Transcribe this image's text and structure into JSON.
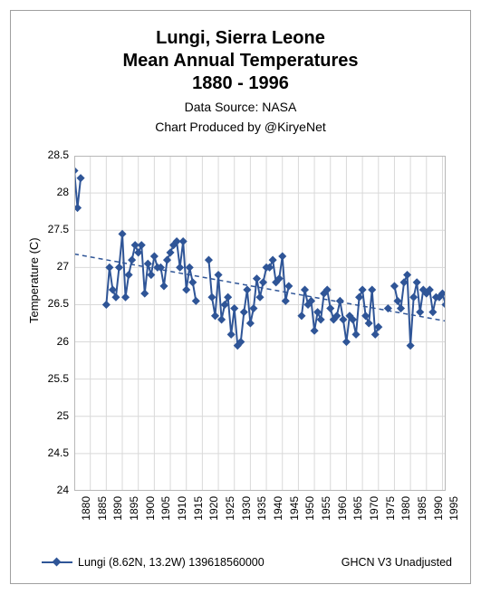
{
  "title_line1": "Lungi, Sierra Leone",
  "title_line2": "Mean Annual Temperatures",
  "title_line3": "1880 - 1996",
  "subtitle_line1": "Data Source: NASA",
  "subtitle_line2": "Chart Produced by @KiryeNet",
  "ylabel": "Temperature (C)",
  "legend_series": "Lungi (8.62N, 13.2W) 139618560000",
  "legend_right": "GHCN V3 Unadjusted",
  "chart": {
    "type": "line",
    "xlim": [
      1880,
      1996
    ],
    "ylim": [
      24,
      28.5
    ],
    "ytick_step": 0.5,
    "xtick_step": 5,
    "xticks": [
      1880,
      1885,
      1890,
      1895,
      1900,
      1905,
      1910,
      1915,
      1920,
      1925,
      1930,
      1935,
      1940,
      1945,
      1950,
      1955,
      1960,
      1965,
      1970,
      1975,
      1980,
      1985,
      1990,
      1995
    ],
    "yticks": [
      24,
      24.5,
      25,
      25.5,
      26,
      26.5,
      27,
      27.5,
      28,
      28.5
    ],
    "background_color": "#ffffff",
    "grid_color": "#d9d9d9",
    "axis_color": "#b8b8b8",
    "grid_on_x": true,
    "grid_on_y": true,
    "series": {
      "color": "#2f5597",
      "line_width": 2,
      "marker": "diamond",
      "marker_size": 5,
      "data": [
        [
          1880,
          28.3
        ],
        [
          1881,
          27.8
        ],
        [
          1882,
          28.2
        ],
        [
          1890,
          26.5
        ],
        [
          1891,
          27.0
        ],
        [
          1892,
          26.7
        ],
        [
          1893,
          26.6
        ],
        [
          1894,
          27.0
        ],
        [
          1895,
          27.45
        ],
        [
          1896,
          26.6
        ],
        [
          1897,
          26.9
        ],
        [
          1898,
          27.1
        ],
        [
          1899,
          27.3
        ],
        [
          1900,
          27.2
        ],
        [
          1901,
          27.3
        ],
        [
          1902,
          26.65
        ],
        [
          1903,
          27.05
        ],
        [
          1904,
          26.9
        ],
        [
          1905,
          27.15
        ],
        [
          1906,
          27.0
        ],
        [
          1907,
          27.0
        ],
        [
          1908,
          26.75
        ],
        [
          1909,
          27.1
        ],
        [
          1910,
          27.2
        ],
        [
          1911,
          27.3
        ],
        [
          1912,
          27.35
        ],
        [
          1913,
          27.0
        ],
        [
          1914,
          27.35
        ],
        [
          1915,
          26.7
        ],
        [
          1916,
          27.0
        ],
        [
          1917,
          26.8
        ],
        [
          1918,
          26.55
        ],
        [
          1922,
          27.1
        ],
        [
          1923,
          26.6
        ],
        [
          1924,
          26.35
        ],
        [
          1925,
          26.9
        ],
        [
          1926,
          26.3
        ],
        [
          1927,
          26.5
        ],
        [
          1928,
          26.6
        ],
        [
          1929,
          26.1
        ],
        [
          1930,
          26.45
        ],
        [
          1931,
          25.95
        ],
        [
          1932,
          26.0
        ],
        [
          1933,
          26.4
        ],
        [
          1934,
          26.7
        ],
        [
          1935,
          26.25
        ],
        [
          1936,
          26.45
        ],
        [
          1937,
          26.85
        ],
        [
          1938,
          26.6
        ],
        [
          1939,
          26.8
        ],
        [
          1940,
          27.0
        ],
        [
          1941,
          27.0
        ],
        [
          1942,
          27.1
        ],
        [
          1943,
          26.8
        ],
        [
          1944,
          26.85
        ],
        [
          1945,
          27.15
        ],
        [
          1946,
          26.55
        ],
        [
          1947,
          26.75
        ],
        [
          1951,
          26.35
        ],
        [
          1952,
          26.7
        ],
        [
          1953,
          26.5
        ],
        [
          1954,
          26.55
        ],
        [
          1955,
          26.15
        ],
        [
          1956,
          26.4
        ],
        [
          1957,
          26.3
        ],
        [
          1958,
          26.65
        ],
        [
          1959,
          26.7
        ],
        [
          1960,
          26.45
        ],
        [
          1961,
          26.3
        ],
        [
          1962,
          26.35
        ],
        [
          1963,
          26.55
        ],
        [
          1964,
          26.3
        ],
        [
          1965,
          26.0
        ],
        [
          1966,
          26.35
        ],
        [
          1967,
          26.3
        ],
        [
          1968,
          26.1
        ],
        [
          1969,
          26.6
        ],
        [
          1970,
          26.7
        ],
        [
          1971,
          26.35
        ],
        [
          1972,
          26.25
        ],
        [
          1973,
          26.7
        ],
        [
          1974,
          26.1
        ],
        [
          1975,
          26.2
        ],
        [
          1978,
          26.45
        ],
        [
          1980,
          26.75
        ],
        [
          1981,
          26.55
        ],
        [
          1982,
          26.45
        ],
        [
          1983,
          26.8
        ],
        [
          1984,
          26.9
        ],
        [
          1985,
          25.95
        ],
        [
          1986,
          26.6
        ],
        [
          1987,
          26.8
        ],
        [
          1988,
          26.4
        ],
        [
          1989,
          26.7
        ],
        [
          1990,
          26.65
        ],
        [
          1991,
          26.7
        ],
        [
          1992,
          26.4
        ],
        [
          1993,
          26.6
        ],
        [
          1994,
          26.6
        ],
        [
          1995,
          26.65
        ],
        [
          1996,
          26.5
        ]
      ],
      "gaps_after": [
        1882,
        1918,
        1947,
        1975,
        1978
      ]
    },
    "trendline": {
      "color": "#2f5597",
      "dash": "5,4",
      "width": 1.5,
      "y_at_xmin": 27.18,
      "y_at_xmax": 26.28
    },
    "title_fontsize": 20,
    "subtitle_fontsize": 14,
    "tick_fontsize": 12,
    "ylabel_fontsize": 13
  }
}
